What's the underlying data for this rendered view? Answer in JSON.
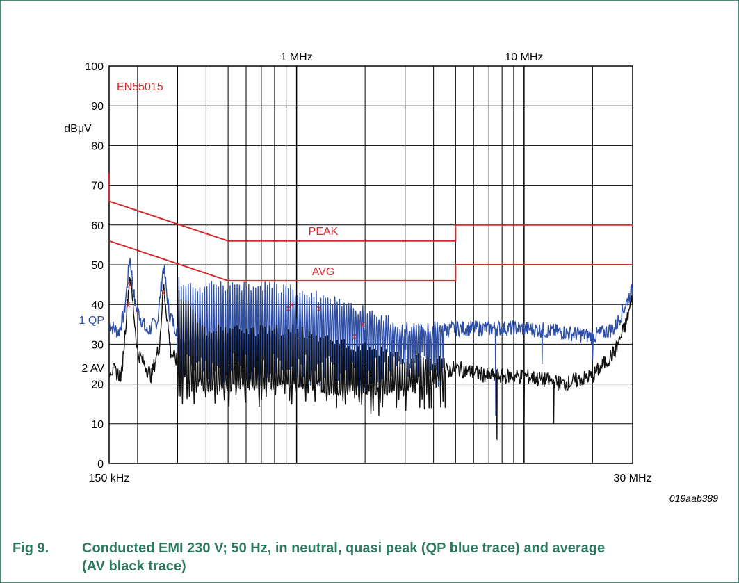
{
  "chart_data": {
    "type": "line",
    "x_scale": "log",
    "xlim_hz": [
      150000,
      30000000
    ],
    "ylim": [
      0,
      100
    ],
    "ylabel": "dBμV",
    "standard_label": "EN55015",
    "y_ticks": [
      0,
      10,
      20,
      30,
      40,
      50,
      60,
      70,
      80,
      90,
      100
    ],
    "x_ticks_top": [
      {
        "value": 1000000,
        "label": "1 MHz"
      },
      {
        "value": 10000000,
        "label": "10 MHz"
      }
    ],
    "x_ticks_bottom": [
      {
        "value": 150000,
        "label": "150 kHz"
      },
      {
        "value": 30000000,
        "label": "30 MHz"
      }
    ],
    "grid": true,
    "limits": [
      {
        "name": "PEAK",
        "color": "#d42a2a",
        "points": [
          [
            150000,
            73
          ],
          [
            150000,
            66
          ],
          [
            500000,
            56
          ],
          [
            5000000,
            56
          ],
          [
            5000000,
            60
          ],
          [
            30000000,
            60
          ]
        ]
      },
      {
        "name": "AVG",
        "color": "#d42a2a",
        "points": [
          [
            150000,
            56
          ],
          [
            500000,
            46
          ],
          [
            5000000,
            46
          ],
          [
            5000000,
            50
          ],
          [
            30000000,
            50
          ]
        ]
      }
    ],
    "series": [
      {
        "name": "1 QP",
        "color": "#2e4fa8",
        "floor": [
          [
            150000,
            35
          ],
          [
            165000,
            33
          ],
          [
            175000,
            38
          ],
          [
            185000,
            52
          ],
          [
            195000,
            40
          ],
          [
            220000,
            33
          ],
          [
            245000,
            36
          ],
          [
            260000,
            50
          ],
          [
            275000,
            38
          ],
          [
            300000,
            33
          ],
          [
            400000,
            32
          ],
          [
            500000,
            33
          ],
          [
            1000000,
            35
          ],
          [
            1500000,
            35
          ],
          [
            2200000,
            33
          ],
          [
            3000000,
            32
          ],
          [
            4000000,
            33
          ],
          [
            5000000,
            34
          ],
          [
            7000000,
            34
          ],
          [
            10000000,
            34
          ],
          [
            15000000,
            33
          ],
          [
            20000000,
            32
          ],
          [
            25000000,
            34
          ],
          [
            28000000,
            40
          ],
          [
            30000000,
            44
          ]
        ],
        "peaks": [
          [
            185000,
            56
          ],
          [
            260000,
            53
          ],
          [
            320000,
            46
          ],
          [
            400000,
            46
          ],
          [
            500000,
            46
          ],
          [
            700000,
            46
          ],
          [
            1000000,
            45
          ],
          [
            1500000,
            42
          ],
          [
            2000000,
            40
          ],
          [
            2500000,
            38
          ],
          [
            3000000,
            36
          ]
        ],
        "dips": [
          [
            1000000,
            20
          ],
          [
            2000000,
            18
          ],
          [
            3000000,
            22
          ],
          [
            7500000,
            12
          ],
          [
            12000000,
            25
          ],
          [
            20000000,
            26
          ]
        ]
      },
      {
        "name": "2 AV",
        "color": "#111111",
        "floor": [
          [
            150000,
            24
          ],
          [
            170000,
            22
          ],
          [
            185000,
            48
          ],
          [
            200000,
            28
          ],
          [
            230000,
            22
          ],
          [
            250000,
            30
          ],
          [
            260000,
            45
          ],
          [
            280000,
            28
          ],
          [
            330000,
            22
          ],
          [
            400000,
            20
          ],
          [
            500000,
            20
          ],
          [
            1000000,
            21
          ],
          [
            1500000,
            19
          ],
          [
            2200000,
            19
          ],
          [
            3000000,
            20
          ],
          [
            4000000,
            22
          ],
          [
            5000000,
            24
          ],
          [
            7000000,
            22
          ],
          [
            10000000,
            22
          ],
          [
            15000000,
            20
          ],
          [
            20000000,
            22
          ],
          [
            25000000,
            28
          ],
          [
            28000000,
            35
          ],
          [
            30000000,
            42
          ]
        ],
        "peaks": [
          [
            185000,
            53
          ],
          [
            260000,
            50
          ],
          [
            400000,
            35
          ],
          [
            700000,
            35
          ],
          [
            1000000,
            35
          ],
          [
            1500000,
            32
          ],
          [
            2200000,
            30
          ],
          [
            3000000,
            28
          ],
          [
            5000000,
            28
          ],
          [
            10000000,
            30
          ],
          [
            20000000,
            30
          ],
          [
            28000000,
            38
          ]
        ],
        "dips": [
          [
            1500000,
            14
          ],
          [
            2300000,
            12
          ],
          [
            4500000,
            14
          ],
          [
            7600000,
            6
          ],
          [
            10000000,
            10
          ],
          [
            13500000,
            10
          ]
        ]
      }
    ],
    "markers": [
      {
        "x": 185000,
        "y": 45,
        "symbol": "x"
      },
      {
        "x": 182000,
        "y": 40,
        "symbol": "x"
      },
      {
        "x": 260000,
        "y": 43,
        "symbol": "x"
      },
      {
        "x": 950000,
        "y": 40,
        "symbol": "x"
      },
      {
        "x": 920000,
        "y": 39,
        "symbol": "x"
      },
      {
        "x": 1250000,
        "y": 39,
        "symbol": "x"
      },
      {
        "x": 1800000,
        "y": 32,
        "symbol": "x"
      },
      {
        "x": 1950000,
        "y": 35,
        "symbol": "x"
      }
    ]
  },
  "labels": {
    "qp": "1 QP",
    "av": "2 AV",
    "peak": "PEAK",
    "avg": "AVG"
  },
  "ref_code": "019aab389",
  "caption": {
    "fig": "Fig 9.",
    "line1": "Conducted EMI 230 V; 50 Hz, in neutral, quasi peak (QP blue trace) and average",
    "line2": "(AV black trace)"
  }
}
